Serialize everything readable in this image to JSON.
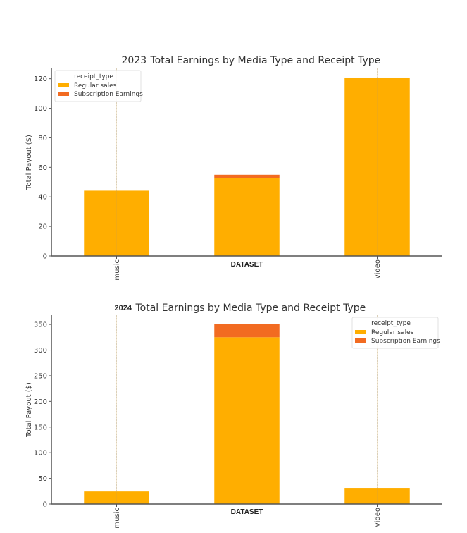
{
  "colors": {
    "regular": "#FFAE00",
    "subscription": "#F26B21",
    "axis": "#555555",
    "grid": "#d8d8d8"
  },
  "chart_data": [
    {
      "type": "bar",
      "stacked": true,
      "title_year": "2023",
      "title_rest": "Total Earnings by Media Type and Receipt Type",
      "title_year_bold": false,
      "xlabel": "DATASET",
      "ylabel": "Total Payout ($)",
      "categories": [
        "music",
        "DATASET",
        "video"
      ],
      "ylim": [
        0,
        127
      ],
      "yticks": [
        0,
        20,
        40,
        60,
        80,
        100,
        120
      ],
      "grid": "x",
      "legend": {
        "title": "receipt_type",
        "placement": "top-left",
        "entries": [
          "Regular sales",
          "Subscription Earnings"
        ]
      },
      "series": [
        {
          "name": "Regular sales",
          "values": [
            44.2,
            52.8,
            120.8
          ]
        },
        {
          "name": "Subscription Earnings",
          "values": [
            0,
            2.2,
            0
          ]
        }
      ]
    },
    {
      "type": "bar",
      "stacked": true,
      "title_year": "2024",
      "title_rest": "Total Earnings by Media Type and Receipt Type",
      "title_year_bold": true,
      "xlabel": "DATASET",
      "ylabel": "Total Payout ($)",
      "categories": [
        "music",
        "DATASET",
        "video"
      ],
      "ylim": [
        0,
        368
      ],
      "yticks": [
        0,
        50,
        100,
        150,
        200,
        250,
        300,
        350
      ],
      "grid": "x",
      "legend": {
        "title": "receipt_type",
        "placement": "top-right",
        "entries": [
          "Regular sales",
          "Subscription Earnings"
        ]
      },
      "series": [
        {
          "name": "Regular sales",
          "values": [
            24.5,
            325,
            31.5
          ]
        },
        {
          "name": "Subscription Earnings",
          "values": [
            0,
            26,
            0
          ]
        }
      ]
    }
  ]
}
